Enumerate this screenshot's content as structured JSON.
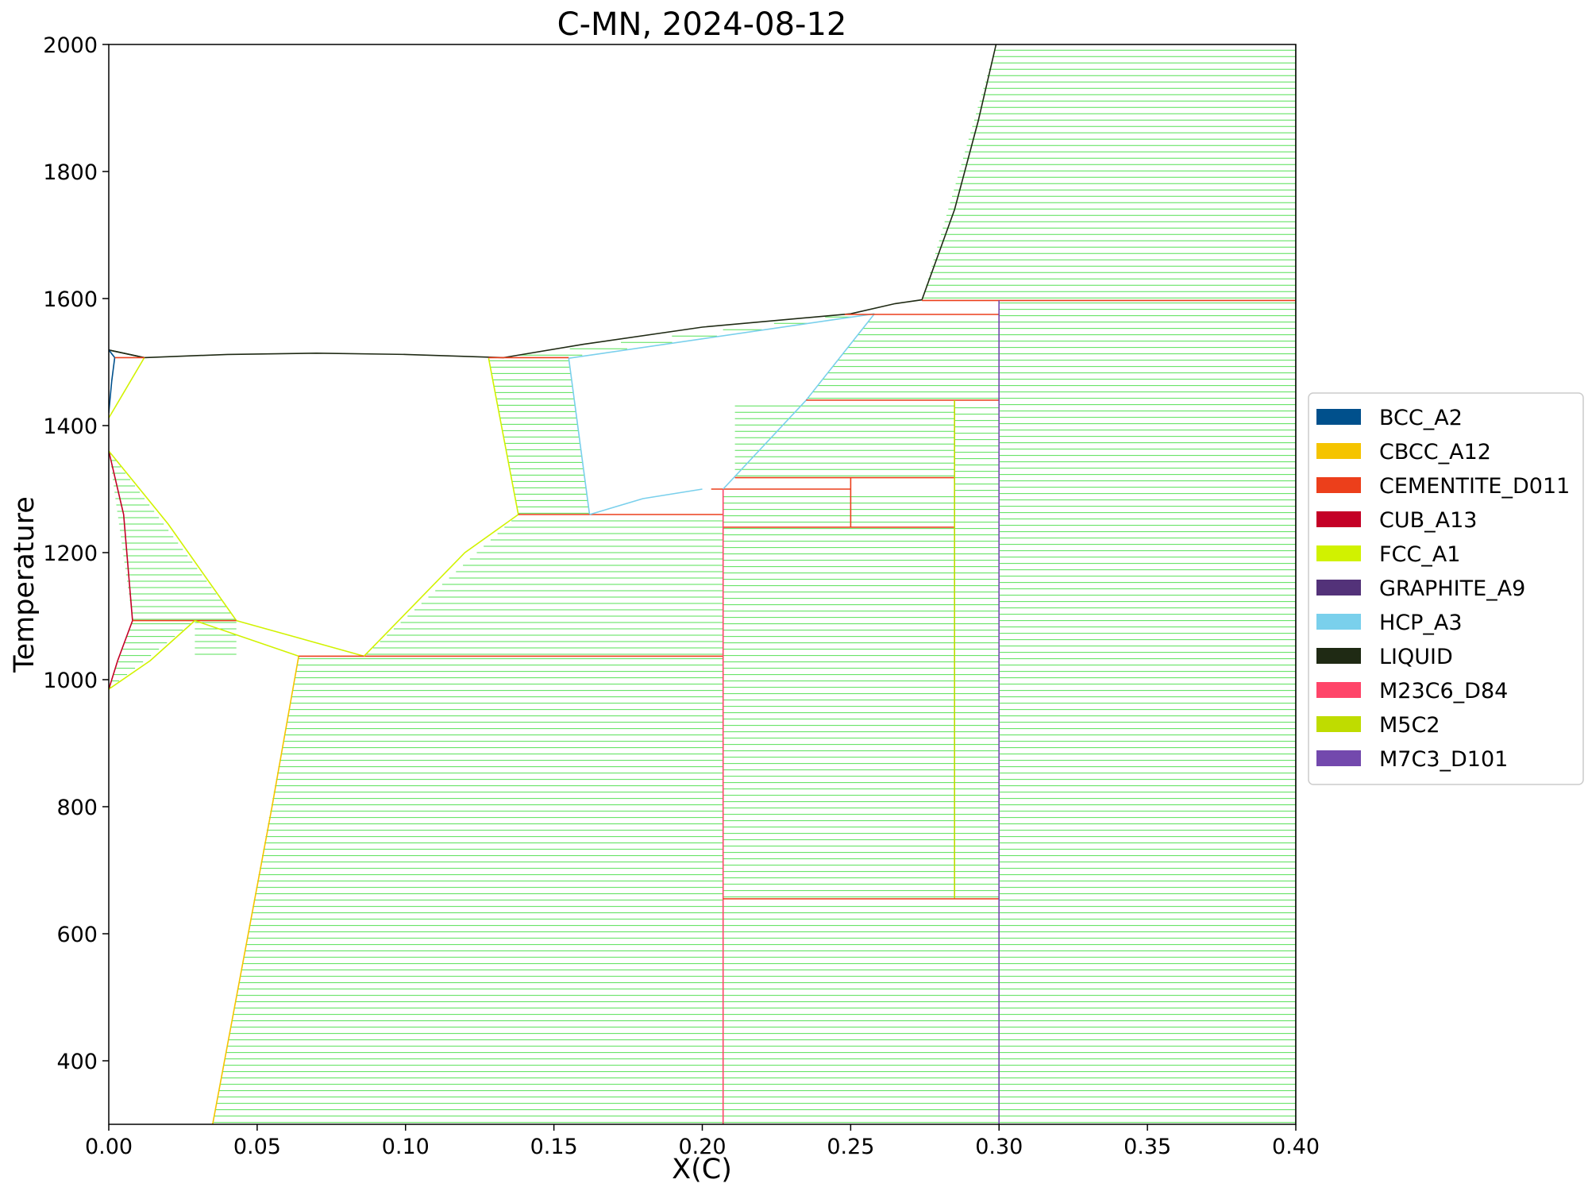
{
  "chart_data": {
    "type": "line",
    "title": "C-MN, 2024-08-12",
    "xlabel": "X(C)",
    "ylabel": "Temperature",
    "xlim": [
      0.0,
      0.4
    ],
    "ylim": [
      300,
      2000
    ],
    "x_ticks": [
      "0.00",
      "0.05",
      "0.10",
      "0.15",
      "0.20",
      "0.25",
      "0.30",
      "0.35",
      "0.40"
    ],
    "y_ticks": [
      "400",
      "600",
      "800",
      "1000",
      "1200",
      "1400",
      "1600",
      "1800",
      "2000"
    ],
    "grid": false,
    "legend_position": "center-right",
    "legend": [
      {
        "name": "BCC_A2",
        "color": "#00508c"
      },
      {
        "name": "CBCC_A12",
        "color": "#f5c400"
      },
      {
        "name": "CEMENTITE_D011",
        "color": "#ec3f1b"
      },
      {
        "name": "CUB_A13",
        "color": "#c40026"
      },
      {
        "name": "FCC_A1",
        "color": "#d1f200"
      },
      {
        "name": "GRAPHITE_A9",
        "color": "#533279"
      },
      {
        "name": "HCP_A3",
        "color": "#7ad0ec"
      },
      {
        "name": "LIQUID",
        "color": "#1f2a14"
      },
      {
        "name": "M23C6_D84",
        "color": "#ff4569"
      },
      {
        "name": "M5C2",
        "color": "#bfdc00"
      },
      {
        "name": "M7C3_D101",
        "color": "#7349ad"
      }
    ],
    "tieline_color": "#55e055",
    "tie_regions": [
      {
        "l0": [
          0.0,
          300
        ],
        "l1": [
          0.0,
          2000
        ],
        "r0": [
          0.0,
          300
        ],
        "r1": [
          0.0,
          2000
        ],
        "t0": 1420,
        "t1": 1505
      },
      {
        "l0": [
          0.0,
          1360
        ],
        "l1": [
          0.008,
          1093
        ],
        "r0": [
          0.0,
          1360
        ],
        "r1": [
          0.043,
          1093
        ],
        "t0": 1095,
        "t1": 1355
      },
      {
        "l0": [
          0.0,
          985
        ],
        "l1": [
          0.008,
          1093
        ],
        "r0": [
          0.0,
          985
        ],
        "r1": [
          0.029,
          1093
        ],
        "t0": 988,
        "t1": 1090
      },
      {
        "l0": [
          0.029,
          1093
        ],
        "l1": [
          0.029,
          1093
        ],
        "r0": [
          0.043,
          1093
        ],
        "r1": [
          0.043,
          1093
        ],
        "t0": 1040,
        "t1": 1090
      },
      {
        "l0": [
          0.128,
          1506
        ],
        "l1": [
          0.138,
          1260
        ],
        "r0": [
          0.155,
          1506
        ],
        "r1": [
          0.162,
          1260
        ],
        "t0": 1262,
        "t1": 1504
      },
      {
        "l0": [
          0.138,
          1260
        ],
        "l1": [
          0.086,
          1037
        ],
        "r0": [
          0.207,
          1260
        ],
        "r1": [
          0.207,
          1037
        ],
        "t0": 1040,
        "t1": 1257
      },
      {
        "l0": [
          0.064,
          1037
        ],
        "l1": [
          0.035,
          300
        ],
        "r0": [
          0.207,
          1037
        ],
        "r1": [
          0.207,
          300
        ],
        "t0": 303,
        "t1": 1034
      },
      {
        "l0": [
          0.207,
          1300
        ],
        "l1": [
          0.207,
          655
        ],
        "r0": [
          0.285,
          1300
        ],
        "r1": [
          0.285,
          655
        ],
        "t0": 658,
        "t1": 1297
      },
      {
        "l0": [
          0.285,
          1440
        ],
        "l1": [
          0.285,
          655
        ],
        "r0": [
          0.3,
          1440
        ],
        "r1": [
          0.3,
          655
        ],
        "t0": 658,
        "t1": 1437
      },
      {
        "l0": [
          0.207,
          655
        ],
        "l1": [
          0.207,
          300
        ],
        "r0": [
          0.3,
          655
        ],
        "r1": [
          0.3,
          300
        ],
        "t0": 303,
        "t1": 652
      },
      {
        "l0": [
          0.211,
          1318
        ],
        "l1": [
          0.211,
          1318
        ],
        "r0": [
          0.285,
          1440
        ],
        "r1": [
          0.285,
          1318
        ],
        "t0": 1321,
        "t1": 1437
      },
      {
        "l0": [
          0.235,
          1440
        ],
        "l1": [
          0.258,
          1575
        ],
        "r0": [
          0.3,
          1440
        ],
        "r1": [
          0.3,
          1575
        ],
        "t0": 1443,
        "t1": 1572
      },
      {
        "l0": [
          0.133,
          1508
        ],
        "l1": [
          0.25,
          1576
        ],
        "r0": [
          0.155,
          1508
        ],
        "r1": [
          0.258,
          1576
        ],
        "t0": 1511,
        "t1": 1573
      },
      {
        "l0": [
          0.3,
          300
        ],
        "l1": [
          0.3,
          2000
        ],
        "r0": [
          0.4,
          300
        ],
        "r1": [
          0.4,
          2000
        ],
        "t0": 303,
        "t1": 1595
      },
      {
        "l0": [
          0.274,
          1598
        ],
        "l1": [
          0.299,
          2000
        ],
        "r0": [
          0.4,
          1598
        ],
        "r1": [
          0.4,
          2000
        ],
        "t0": 1601,
        "t1": 2000
      }
    ],
    "boundaries": [
      {
        "phase": "LIQUID",
        "color": "#1f2a14",
        "points": [
          [
            0.0,
            1519
          ],
          [
            0.012,
            1507
          ],
          [
            0.04,
            1512
          ],
          [
            0.07,
            1514
          ],
          [
            0.1,
            1512
          ],
          [
            0.133,
            1507
          ],
          [
            0.16,
            1528
          ],
          [
            0.2,
            1555
          ],
          [
            0.25,
            1576
          ],
          [
            0.265,
            1592
          ],
          [
            0.274,
            1598
          ],
          [
            0.285,
            1740
          ],
          [
            0.293,
            1880
          ],
          [
            0.299,
            2000
          ]
        ]
      },
      {
        "phase": "LIQUID",
        "color": "#1f2a14",
        "points": [
          [
            0.0,
            1519
          ],
          [
            0.012,
            1507
          ]
        ]
      },
      {
        "phase": "BCC_A2",
        "color": "#00508c",
        "points": [
          [
            0.0,
            1519
          ],
          [
            0.002,
            1507
          ],
          [
            0.001,
            1470
          ],
          [
            0.0,
            1420
          ]
        ]
      },
      {
        "phase": "FCC_A1",
        "color": "#d1f200",
        "points": [
          [
            0.0,
            1412
          ],
          [
            0.012,
            1507
          ]
        ]
      },
      {
        "phase": "CEMENTITE_D011",
        "color": "#ec3f1b",
        "points": [
          [
            0.002,
            1507
          ],
          [
            0.012,
            1507
          ]
        ]
      },
      {
        "phase": "CUB_A13",
        "color": "#c40026",
        "points": [
          [
            0.0,
            1360
          ],
          [
            0.005,
            1260
          ],
          [
            0.008,
            1093
          ]
        ]
      },
      {
        "phase": "FCC_A1",
        "color": "#d1f200",
        "points": [
          [
            0.0,
            1360
          ],
          [
            0.02,
            1245
          ],
          [
            0.043,
            1093
          ]
        ]
      },
      {
        "phase": "CEMENTITE_D011",
        "color": "#ec3f1b",
        "points": [
          [
            0.008,
            1093
          ],
          [
            0.043,
            1093
          ]
        ]
      },
      {
        "phase": "CUB_A13",
        "color": "#c40026",
        "points": [
          [
            0.0,
            985
          ],
          [
            0.003,
            1030
          ],
          [
            0.008,
            1093
          ]
        ]
      },
      {
        "phase": "FCC_A1",
        "color": "#d1f200",
        "points": [
          [
            0.0,
            985
          ],
          [
            0.014,
            1030
          ],
          [
            0.029,
            1093
          ]
        ]
      },
      {
        "phase": "FCC_A1",
        "color": "#d1f200",
        "points": [
          [
            0.029,
            1093
          ],
          [
            0.064,
            1037
          ]
        ]
      },
      {
        "phase": "FCC_A1",
        "color": "#d1f200",
        "points": [
          [
            0.043,
            1093
          ],
          [
            0.086,
            1037
          ]
        ]
      },
      {
        "phase": "CBCC_A12",
        "color": "#f5c400",
        "points": [
          [
            0.064,
            1037
          ],
          [
            0.055,
            800
          ],
          [
            0.035,
            300
          ]
        ]
      },
      {
        "phase": "CEMENTITE_D011",
        "color": "#ec3f1b",
        "points": [
          [
            0.064,
            1037
          ],
          [
            0.207,
            1037
          ]
        ]
      },
      {
        "phase": "FCC_A1",
        "color": "#d1f200",
        "points": [
          [
            0.086,
            1037
          ],
          [
            0.12,
            1200
          ],
          [
            0.138,
            1260
          ]
        ]
      },
      {
        "phase": "FCC_A1",
        "color": "#d1f200",
        "points": [
          [
            0.128,
            1506
          ],
          [
            0.138,
            1260
          ]
        ]
      },
      {
        "phase": "HCP_A3",
        "color": "#7ad0ec",
        "points": [
          [
            0.155,
            1506
          ],
          [
            0.162,
            1260
          ]
        ]
      },
      {
        "phase": "CEMENTITE_D011",
        "color": "#ec3f1b",
        "points": [
          [
            0.128,
            1507
          ],
          [
            0.155,
            1507
          ]
        ]
      },
      {
        "phase": "HCP_A3",
        "color": "#7ad0ec",
        "points": [
          [
            0.155,
            1506
          ],
          [
            0.258,
            1576
          ]
        ]
      },
      {
        "phase": "CEMENTITE_D011",
        "color": "#ec3f1b",
        "points": [
          [
            0.138,
            1260
          ],
          [
            0.207,
            1260
          ]
        ]
      },
      {
        "phase": "HCP_A3",
        "color": "#7ad0ec",
        "points": [
          [
            0.162,
            1260
          ],
          [
            0.18,
            1285
          ],
          [
            0.2,
            1300
          ]
        ]
      },
      {
        "phase": "CEMENTITE_D011",
        "color": "#ec3f1b",
        "points": [
          [
            0.203,
            1300
          ],
          [
            0.25,
            1300
          ]
        ]
      },
      {
        "phase": "HCP_A3",
        "color": "#7ad0ec",
        "points": [
          [
            0.207,
            1300
          ],
          [
            0.235,
            1440
          ],
          [
            0.258,
            1576
          ]
        ]
      },
      {
        "phase": "CEMENTITE_D011",
        "color": "#ec3f1b",
        "points": [
          [
            0.211,
            1318
          ],
          [
            0.285,
            1318
          ]
        ]
      },
      {
        "phase": "CEMENTITE_D011",
        "color": "#ec3f1b",
        "points": [
          [
            0.207,
            1240
          ],
          [
            0.285,
            1240
          ]
        ]
      },
      {
        "phase": "CEMENTITE_D011",
        "color": "#ec3f1b",
        "points": [
          [
            0.25,
            1318
          ],
          [
            0.25,
            1240
          ]
        ]
      },
      {
        "phase": "CEMENTITE_D011",
        "color": "#ec3f1b",
        "points": [
          [
            0.235,
            1440
          ],
          [
            0.3,
            1440
          ]
        ]
      },
      {
        "phase": "CEMENTITE_D011",
        "color": "#ec3f1b",
        "points": [
          [
            0.248,
            1575
          ],
          [
            0.3,
            1575
          ]
        ]
      },
      {
        "phase": "CEMENTITE_D011",
        "color": "#ec3f1b",
        "points": [
          [
            0.274,
            1597
          ],
          [
            0.4,
            1597
          ]
        ]
      },
      {
        "phase": "M23C6_D84",
        "color": "#ff4569",
        "points": [
          [
            0.207,
            1300
          ],
          [
            0.207,
            300
          ]
        ]
      },
      {
        "phase": "M5C2",
        "color": "#bfdc00",
        "points": [
          [
            0.285,
            1440
          ],
          [
            0.285,
            655
          ]
        ]
      },
      {
        "phase": "CEMENTITE_D011",
        "color": "#ec3f1b",
        "points": [
          [
            0.207,
            655
          ],
          [
            0.3,
            655
          ]
        ]
      },
      {
        "phase": "M7C3_D101",
        "color": "#7349ad",
        "points": [
          [
            0.3,
            1597
          ],
          [
            0.3,
            300
          ]
        ]
      },
      {
        "phase": "LIQUID",
        "color": "#2a6a2a",
        "points": [
          [
            0.4,
            300
          ],
          [
            0.4,
            2000
          ]
        ]
      }
    ]
  }
}
